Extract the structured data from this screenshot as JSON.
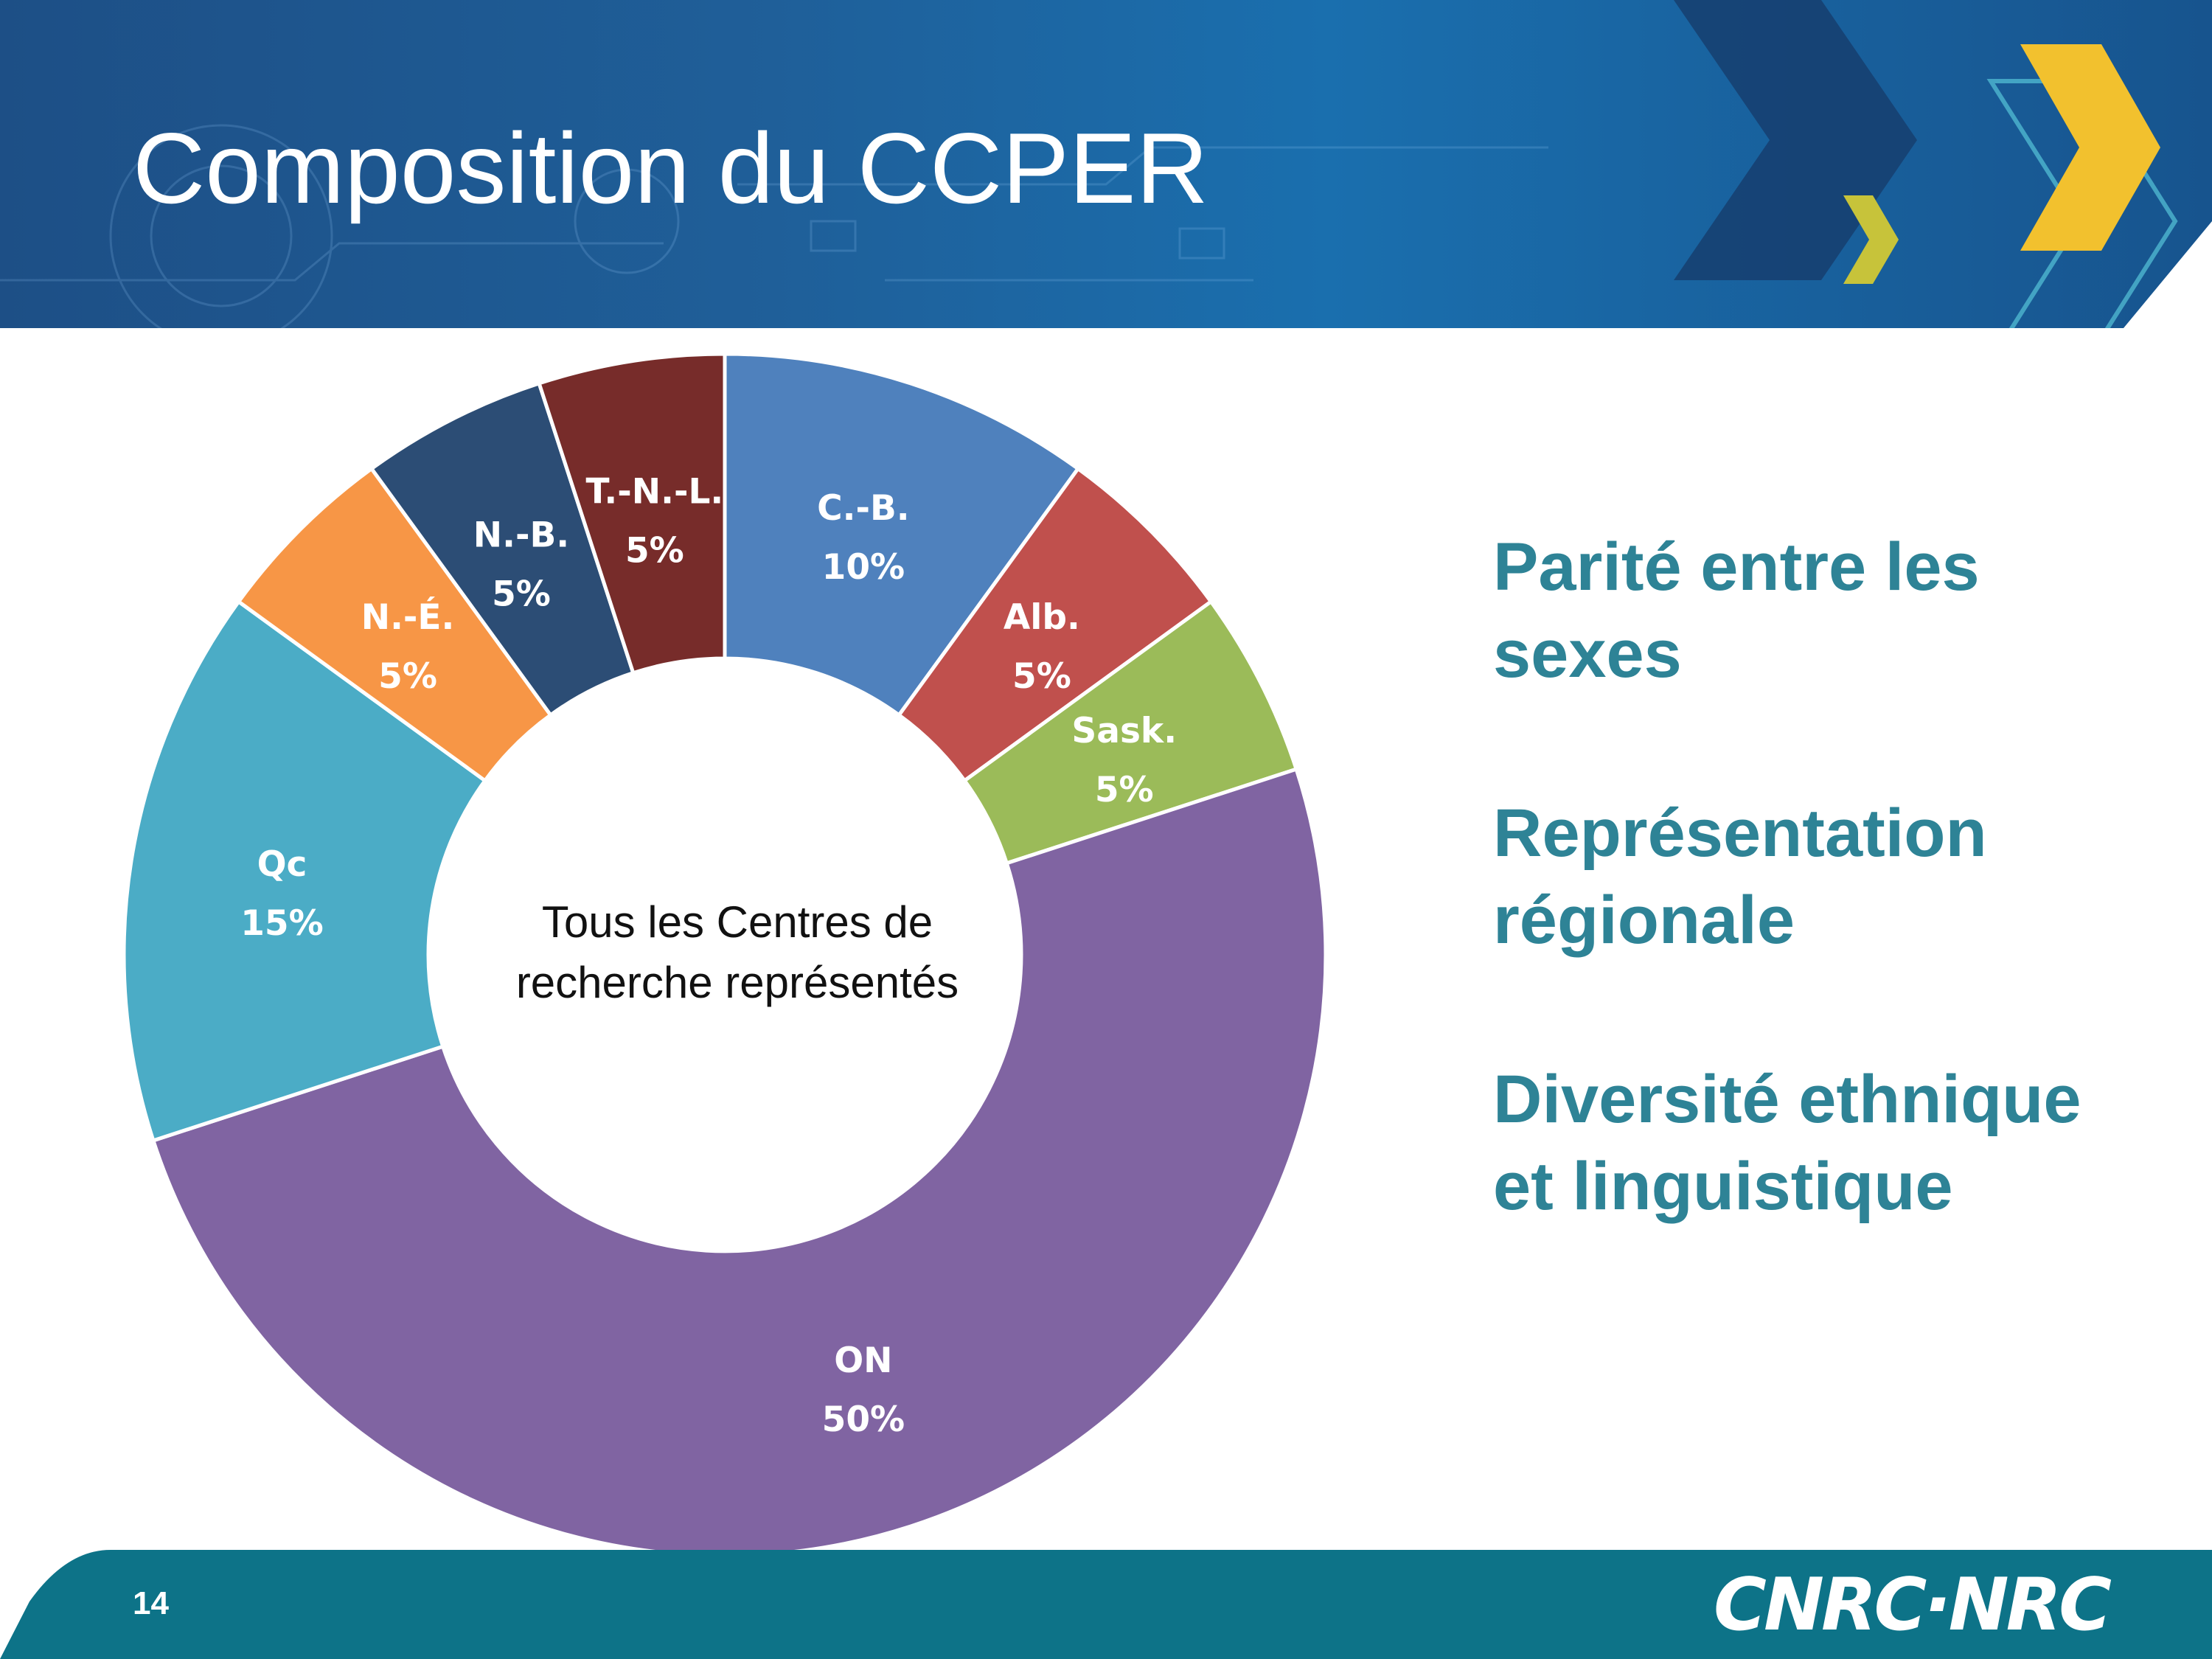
{
  "slide": {
    "title": "Composition du CCPER",
    "page_number": "14",
    "logo_text": "CNRC·NRC"
  },
  "chart_data": {
    "type": "pie",
    "style": "donut",
    "center_label": [
      "Tous les Centres de",
      "recherche représentés"
    ],
    "segments": [
      {
        "label": "C.-B.",
        "value": 10,
        "value_label": "10%",
        "color": "#4f81bd"
      },
      {
        "label": "Alb.",
        "value": 5,
        "value_label": "5%",
        "color": "#c0504d"
      },
      {
        "label": "Sask.",
        "value": 5,
        "value_label": "5%",
        "color": "#9bbb59"
      },
      {
        "label": "ON",
        "value": 50,
        "value_label": "50%",
        "color": "#8064a2"
      },
      {
        "label": "Qc",
        "value": 15,
        "value_label": "15%",
        "color": "#4bacc6"
      },
      {
        "label": "N.-É.",
        "value": 5,
        "value_label": "5%",
        "color": "#f79646"
      },
      {
        "label": "N.-B.",
        "value": 5,
        "value_label": "5%",
        "color": "#2c4d75"
      },
      {
        "label": "T.-N.-L.",
        "value": 5,
        "value_label": "5%",
        "color": "#772c2a"
      }
    ]
  },
  "bullets": [
    {
      "line1": "Parité entre les",
      "line2": "sexes"
    },
    {
      "line1": "Représentation",
      "line2": "régionale"
    },
    {
      "line1": "Diversité ethnique",
      "line2": "et linguistique"
    }
  ],
  "colors": {
    "header": "#1f5f99",
    "accent_yellow": "#f2c12e",
    "accent_teal": "#2e8396",
    "footer": "#0d7388"
  }
}
